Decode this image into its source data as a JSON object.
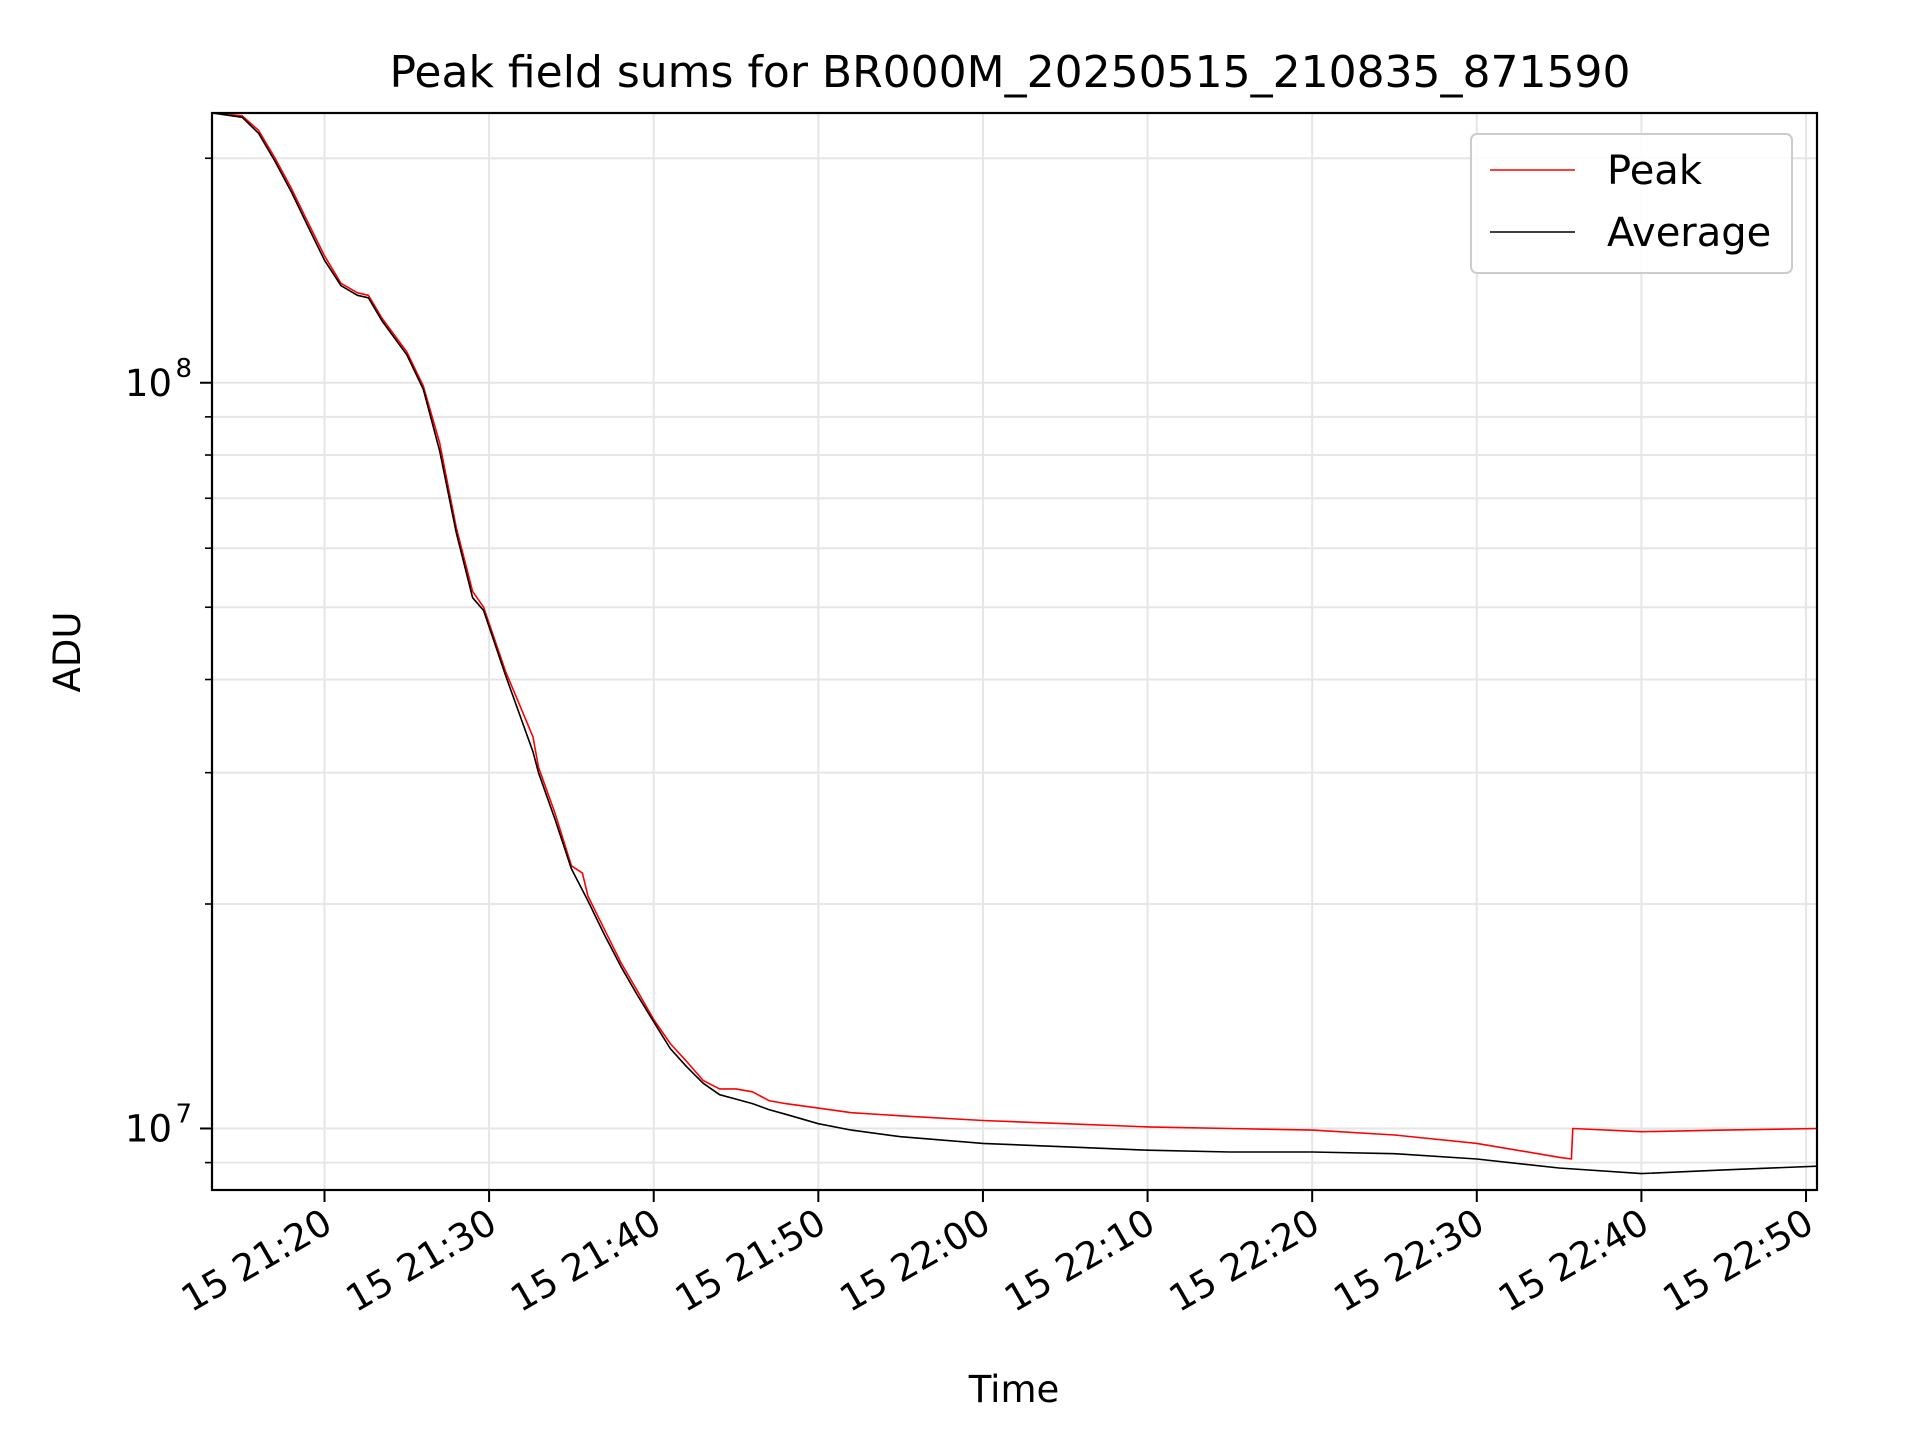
{
  "chart_data": {
    "type": "line",
    "title": "Peak field sums for BR000M_20250515_210835_871590",
    "xlabel": "Time",
    "ylabel": "ADU",
    "x_range": [
      "2025-05-15 21:13:10",
      "2025-05-15 22:50:40"
    ],
    "y_range": [
      8270000,
      230000000
    ],
    "y_scale": "log",
    "grid": true,
    "legend_placement": "top-right",
    "x_ticks": [
      {
        "value": "2025-05-15 21:20",
        "label": "15 21:20"
      },
      {
        "value": "2025-05-15 21:30",
        "label": "15 21:30"
      },
      {
        "value": "2025-05-15 21:40",
        "label": "15 21:40"
      },
      {
        "value": "2025-05-15 21:50",
        "label": "15 21:50"
      },
      {
        "value": "2025-05-15 22:00",
        "label": "15 22:00"
      },
      {
        "value": "2025-05-15 22:10",
        "label": "15 22:10"
      },
      {
        "value": "2025-05-15 22:20",
        "label": "15 22:20"
      },
      {
        "value": "2025-05-15 22:30",
        "label": "15 22:30"
      },
      {
        "value": "2025-05-15 22:40",
        "label": "15 22:40"
      },
      {
        "value": "2025-05-15 22:50",
        "label": "15 22:50"
      }
    ],
    "y_ticks": [
      {
        "value": 10000000,
        "base": "10",
        "exp": "7"
      },
      {
        "value": 100000000,
        "base": "10",
        "exp": "8"
      }
    ],
    "series": [
      {
        "name": "Peak",
        "color": "#ff0000",
        "points": [
          [
            "2025-05-15 21:13:10",
            230000000
          ],
          [
            "2025-05-15 21:15:00",
            228000000
          ],
          [
            "2025-05-15 21:16:00",
            218000000
          ],
          [
            "2025-05-15 21:17:00",
            200000000
          ],
          [
            "2025-05-15 21:18:00",
            182000000
          ],
          [
            "2025-05-15 21:19:00",
            164000000
          ],
          [
            "2025-05-15 21:20:00",
            148000000
          ],
          [
            "2025-05-15 21:21:00",
            136000000
          ],
          [
            "2025-05-15 21:22:00",
            132000000
          ],
          [
            "2025-05-15 21:22:40",
            131000000
          ],
          [
            "2025-05-15 21:23:30",
            122000000
          ],
          [
            "2025-05-15 21:25:00",
            110000000
          ],
          [
            "2025-05-15 21:26:00",
            99000000
          ],
          [
            "2025-05-15 21:27:00",
            83000000
          ],
          [
            "2025-05-15 21:28:00",
            64000000
          ],
          [
            "2025-05-15 21:29:00",
            52500000
          ],
          [
            "2025-05-15 21:29:40",
            50000000
          ],
          [
            "2025-05-15 21:31:00",
            41000000
          ],
          [
            "2025-05-15 21:32:40",
            33500000
          ],
          [
            "2025-05-15 21:33:00",
            30500000
          ],
          [
            "2025-05-15 21:34:00",
            26500000
          ],
          [
            "2025-05-15 21:35:00",
            22500000
          ],
          [
            "2025-05-15 21:35:40",
            22000000
          ],
          [
            "2025-05-15 21:36:00",
            20500000
          ],
          [
            "2025-05-15 21:37:00",
            18500000
          ],
          [
            "2025-05-15 21:38:00",
            16700000
          ],
          [
            "2025-05-15 21:39:00",
            15300000
          ],
          [
            "2025-05-15 21:40:00",
            14000000
          ],
          [
            "2025-05-15 21:41:00",
            13000000
          ],
          [
            "2025-05-15 21:42:00",
            12300000
          ],
          [
            "2025-05-15 21:43:00",
            11600000
          ],
          [
            "2025-05-15 21:44:00",
            11300000
          ],
          [
            "2025-05-15 21:45:00",
            11300000
          ],
          [
            "2025-05-15 21:46:00",
            11200000
          ],
          [
            "2025-05-15 21:47:00",
            10900000
          ],
          [
            "2025-05-15 21:48:00",
            10800000
          ],
          [
            "2025-05-15 21:50:00",
            10650000
          ],
          [
            "2025-05-15 21:52:00",
            10500000
          ],
          [
            "2025-05-15 21:55:00",
            10400000
          ],
          [
            "2025-05-15 22:00:00",
            10250000
          ],
          [
            "2025-05-15 22:05:00",
            10150000
          ],
          [
            "2025-05-15 22:10:00",
            10050000
          ],
          [
            "2025-05-15 22:15:00",
            10000000
          ],
          [
            "2025-05-15 22:20:00",
            9950000
          ],
          [
            "2025-05-15 22:25:00",
            9800000
          ],
          [
            "2025-05-15 22:30:00",
            9550000
          ],
          [
            "2025-05-15 22:35:00",
            9150000
          ],
          [
            "2025-05-15 22:35:45",
            9100000
          ],
          [
            "2025-05-15 22:35:50",
            10000000
          ],
          [
            "2025-05-15 22:40:00",
            9900000
          ],
          [
            "2025-05-15 22:45:00",
            9950000
          ],
          [
            "2025-05-15 22:50:40",
            10000000
          ]
        ]
      },
      {
        "name": "Average",
        "color": "#000000",
        "points": [
          [
            "2025-05-15 21:13:10",
            230000000
          ],
          [
            "2025-05-15 21:15:00",
            227000000
          ],
          [
            "2025-05-15 21:16:00",
            216000000
          ],
          [
            "2025-05-15 21:17:00",
            198000000
          ],
          [
            "2025-05-15 21:18:00",
            180000000
          ],
          [
            "2025-05-15 21:19:00",
            162000000
          ],
          [
            "2025-05-15 21:20:00",
            146000000
          ],
          [
            "2025-05-15 21:21:00",
            135000000
          ],
          [
            "2025-05-15 21:22:00",
            131000000
          ],
          [
            "2025-05-15 21:22:40",
            130000000
          ],
          [
            "2025-05-15 21:23:30",
            121000000
          ],
          [
            "2025-05-15 21:25:00",
            109000000
          ],
          [
            "2025-05-15 21:26:00",
            98000000
          ],
          [
            "2025-05-15 21:27:00",
            81000000
          ],
          [
            "2025-05-15 21:28:00",
            63000000
          ],
          [
            "2025-05-15 21:29:00",
            51500000
          ],
          [
            "2025-05-15 21:29:40",
            49500000
          ],
          [
            "2025-05-15 21:31:00",
            40500000
          ],
          [
            "2025-05-15 21:32:40",
            32000000
          ],
          [
            "2025-05-15 21:33:00",
            30000000
          ],
          [
            "2025-05-15 21:34:00",
            26000000
          ],
          [
            "2025-05-15 21:35:00",
            22300000
          ],
          [
            "2025-05-15 21:36:00",
            20200000
          ],
          [
            "2025-05-15 21:37:00",
            18200000
          ],
          [
            "2025-05-15 21:38:00",
            16500000
          ],
          [
            "2025-05-15 21:39:00",
            15100000
          ],
          [
            "2025-05-15 21:40:00",
            13900000
          ],
          [
            "2025-05-15 21:41:00",
            12800000
          ],
          [
            "2025-05-15 21:42:00",
            12100000
          ],
          [
            "2025-05-15 21:43:00",
            11500000
          ],
          [
            "2025-05-15 21:44:00",
            11100000
          ],
          [
            "2025-05-15 21:45:00",
            10950000
          ],
          [
            "2025-05-15 21:46:00",
            10800000
          ],
          [
            "2025-05-15 21:47:00",
            10600000
          ],
          [
            "2025-05-15 21:48:00",
            10450000
          ],
          [
            "2025-05-15 21:50:00",
            10150000
          ],
          [
            "2025-05-15 21:52:00",
            9950000
          ],
          [
            "2025-05-15 21:55:00",
            9750000
          ],
          [
            "2025-05-15 22:00:00",
            9550000
          ],
          [
            "2025-05-15 22:05:00",
            9450000
          ],
          [
            "2025-05-15 22:10:00",
            9350000
          ],
          [
            "2025-05-15 22:15:00",
            9300000
          ],
          [
            "2025-05-15 22:20:00",
            9300000
          ],
          [
            "2025-05-15 22:25:00",
            9250000
          ],
          [
            "2025-05-15 22:30:00",
            9100000
          ],
          [
            "2025-05-15 22:35:00",
            8850000
          ],
          [
            "2025-05-15 22:40:00",
            8700000
          ],
          [
            "2025-05-15 22:45:00",
            8800000
          ],
          [
            "2025-05-15 22:50:40",
            8900000
          ]
        ]
      }
    ]
  }
}
